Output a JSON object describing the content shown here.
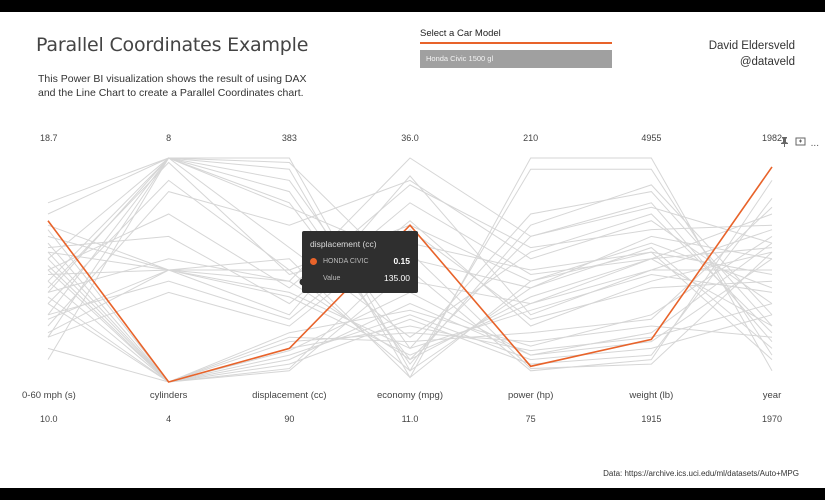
{
  "header": {
    "title": "Parallel Coordinates Example",
    "description_line1": "This Power BI visualization shows the result of using DAX",
    "description_line2": "and the Line Chart to create a Parallel Coordinates chart.",
    "author_name": "David Eldersveld",
    "author_handle": "@dataveld"
  },
  "slicer": {
    "label": "Select a Car Model",
    "value": "Honda Civic 1500 gl"
  },
  "visual_tools": {
    "pin_icon": "pin-icon",
    "focus_icon": "focus-mode-icon",
    "more_label": "..."
  },
  "tooltip": {
    "title": "displacement (cc)",
    "key1": "HONDA CIVIC",
    "val1": "0.15",
    "key2": "Value",
    "val2": "135.00"
  },
  "source": "Data: https://archive.ics.uci.edu/ml/datasets/Auto+MPG",
  "colors": {
    "highlight": "#e8632a",
    "background_lines": "#d6d6d6",
    "tooltip_bg": "#2f2f2f"
  },
  "chart_data": {
    "type": "line",
    "axes": [
      {
        "name": "0-60 mph (s)",
        "max_label": "18.7",
        "min_label": "10.0"
      },
      {
        "name": "cylinders",
        "max_label": "8",
        "min_label": "4"
      },
      {
        "name": "displacement (cc)",
        "max_label": "383",
        "min_label": "90"
      },
      {
        "name": "economy (mpg)",
        "max_label": "36.0",
        "min_label": "11.0"
      },
      {
        "name": "power (hp)",
        "max_label": "210",
        "min_label": "75"
      },
      {
        "name": "weight (lb)",
        "max_label": "4955",
        "min_label": "1915"
      },
      {
        "name": "year",
        "max_label": "1982",
        "min_label": "1970"
      }
    ],
    "ylim": [
      0,
      1
    ],
    "highlight_series": {
      "name": "HONDA CIVIC",
      "values": [
        0.72,
        0.0,
        0.15,
        0.7,
        0.07,
        0.19,
        0.96
      ]
    },
    "background_series": [
      [
        0.55,
        1.0,
        0.98,
        0.45,
        0.35,
        0.55,
        0.6
      ],
      [
        0.45,
        1.0,
        0.78,
        0.55,
        0.42,
        0.65,
        0.55
      ],
      [
        0.42,
        0.98,
        0.48,
        0.62,
        0.5,
        0.58,
        0.48
      ],
      [
        0.35,
        0.9,
        0.5,
        0.7,
        0.45,
        0.62,
        0.42
      ],
      [
        0.25,
        0.85,
        0.7,
        0.9,
        0.55,
        0.72,
        0.35
      ],
      [
        0.5,
        0.75,
        0.42,
        0.88,
        0.6,
        0.68,
        0.7
      ],
      [
        0.6,
        0.65,
        0.35,
        0.8,
        0.48,
        0.55,
        0.75
      ],
      [
        0.4,
        0.55,
        0.45,
        1.0,
        0.65,
        0.78,
        0.62
      ],
      [
        0.7,
        0.5,
        0.3,
        0.92,
        0.3,
        0.5,
        0.5
      ],
      [
        0.3,
        0.45,
        0.28,
        0.72,
        0.25,
        0.45,
        0.58
      ],
      [
        0.2,
        0.4,
        0.25,
        0.68,
        0.28,
        0.42,
        0.45
      ],
      [
        0.15,
        0.0,
        0.12,
        0.3,
        0.1,
        0.15,
        0.3
      ],
      [
        0.35,
        0.0,
        0.15,
        0.25,
        0.14,
        0.2,
        0.35
      ],
      [
        0.5,
        0.0,
        0.18,
        0.22,
        0.18,
        0.25,
        0.2
      ],
      [
        0.62,
        0.0,
        0.1,
        0.35,
        0.12,
        0.18,
        0.55
      ],
      [
        0.55,
        0.0,
        0.22,
        0.32,
        0.16,
        0.3,
        0.65
      ],
      [
        0.45,
        0.0,
        0.2,
        0.18,
        0.22,
        0.28,
        0.78
      ],
      [
        0.38,
        0.0,
        0.08,
        0.28,
        0.08,
        0.12,
        0.82
      ],
      [
        0.58,
        0.5,
        0.45,
        0.1,
        0.38,
        0.55,
        0.25
      ],
      [
        0.48,
        0.5,
        0.5,
        0.05,
        0.42,
        0.6,
        0.15
      ],
      [
        0.28,
        0.5,
        0.55,
        0.02,
        0.45,
        0.58,
        0.1
      ],
      [
        0.65,
        0.5,
        0.4,
        0.15,
        0.32,
        0.48,
        0.4
      ],
      [
        0.22,
        0.5,
        0.38,
        0.12,
        0.35,
        0.5,
        0.68
      ],
      [
        0.75,
        1.0,
        0.9,
        0.15,
        0.75,
        0.85,
        0.25
      ],
      [
        0.2,
        1.0,
        1.0,
        0.05,
        0.95,
        0.95,
        0.12
      ],
      [
        0.1,
        1.0,
        0.95,
        0.02,
        1.0,
        1.0,
        0.05
      ],
      [
        0.3,
        1.0,
        0.85,
        0.08,
        0.7,
        0.88,
        0.3
      ],
      [
        0.4,
        1.0,
        0.8,
        0.1,
        0.65,
        0.8,
        0.18
      ],
      [
        0.8,
        1.0,
        0.6,
        0.2,
        0.58,
        0.75,
        0.22
      ],
      [
        0.58,
        0.0,
        0.05,
        0.5,
        0.05,
        0.1,
        0.9
      ],
      [
        0.68,
        0.0,
        0.06,
        0.58,
        0.06,
        0.08,
        0.58
      ],
      [
        0.52,
        0.0,
        0.14,
        0.4,
        0.12,
        0.22,
        0.62
      ]
    ]
  }
}
